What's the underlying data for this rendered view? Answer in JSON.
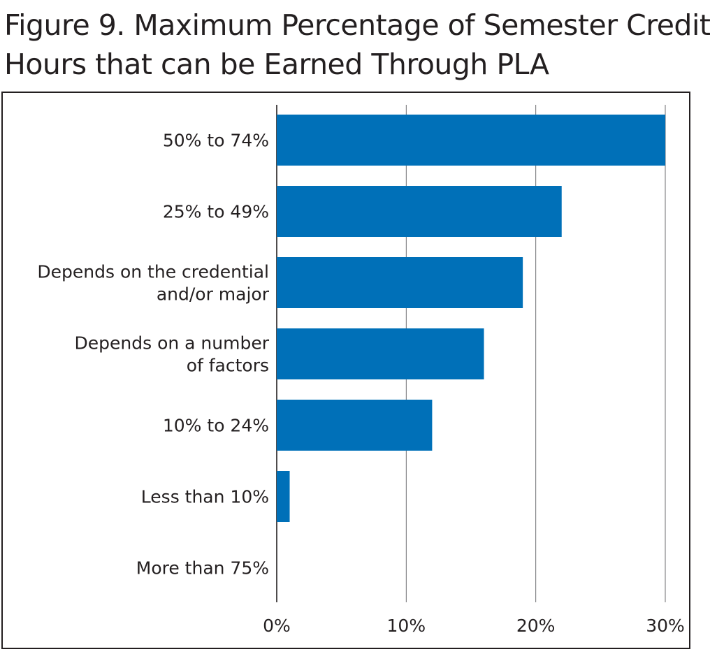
{
  "chart_data": {
    "type": "bar",
    "orientation": "horizontal",
    "title_lines": [
      "Figure 9. Maximum Percentage of Semester Credit",
      "Hours that can be Earned Through PLA"
    ],
    "categories": [
      [
        "50% to 74%"
      ],
      [
        "25% to 49%"
      ],
      [
        "Depends on the credential",
        "and/or major"
      ],
      [
        "Depends on a number",
        "of factors"
      ],
      [
        "10% to 24%"
      ],
      [
        "Less than 10%"
      ],
      [
        "More than 75%"
      ]
    ],
    "values": [
      30,
      22,
      19,
      16,
      12,
      1,
      0
    ],
    "xlim": [
      0,
      30
    ],
    "xticks": [
      0,
      10,
      20,
      30
    ],
    "xtick_labels": [
      "0%",
      "10%",
      "20%",
      "30%"
    ],
    "bar_color": "#0070b8",
    "grid": true
  }
}
